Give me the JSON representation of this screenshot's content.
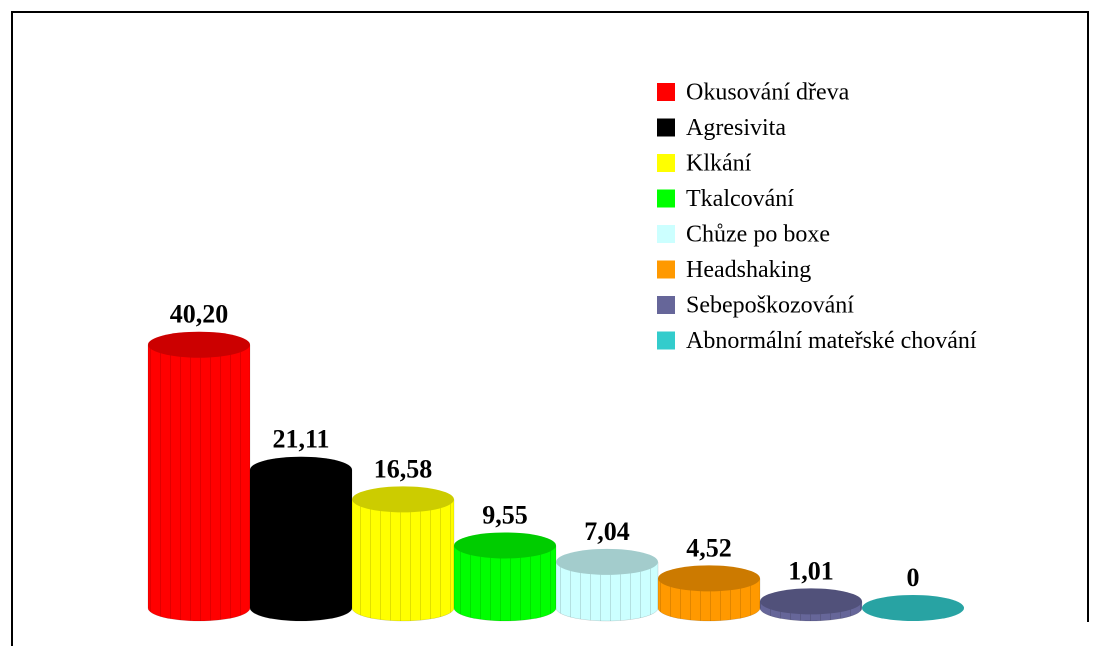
{
  "chart_data": {
    "type": "bar",
    "categories": [
      "Okusování dřeva",
      "Agresivita",
      "Klkání",
      "Tkalcování",
      "Chůze po boxe",
      "Headshaking",
      "Sebepoškozování",
      "Abnormální mateřské chování"
    ],
    "values": [
      40.2,
      21.11,
      16.58,
      9.55,
      7.04,
      4.52,
      1.01,
      0
    ],
    "value_labels": [
      "40,20",
      "21,11",
      "16,58",
      "9,55",
      "7,04",
      "4,52",
      "1,01",
      "0"
    ],
    "colors": [
      "#ff0000",
      "#000000",
      "#ffff00",
      "#00ff00",
      "#ccffff",
      "#ff9900",
      "#666699",
      "#33cccc"
    ]
  }
}
